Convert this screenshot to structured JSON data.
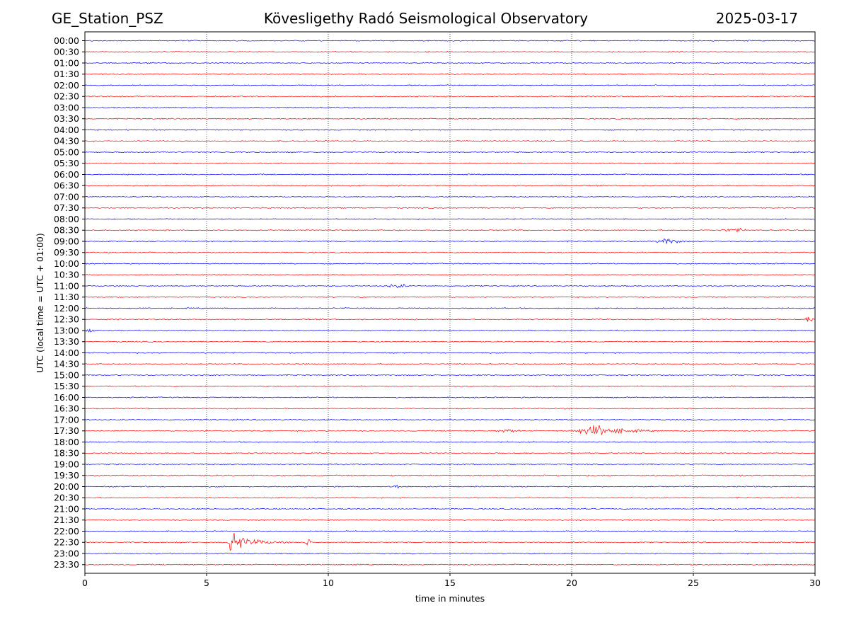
{
  "header": {
    "left": "GE_Station_PSZ",
    "center": "Kövesligethy Radó Seismological Observatory",
    "right": "2025-03-17"
  },
  "chart_data": {
    "type": "line",
    "title": "Kövesligethy Radó Seismological Observatory",
    "xlabel": "time in minutes",
    "ylabel": "UTC (local time = UTC + 01:00)",
    "xlim": [
      0,
      30
    ],
    "xticks": [
      0,
      5,
      10,
      15,
      20,
      25,
      30
    ],
    "grid": "vertical dotted",
    "colors": [
      "#0000ff",
      "#ff0000"
    ],
    "rows": [
      "00:00",
      "00:30",
      "01:00",
      "01:30",
      "02:00",
      "02:30",
      "03:00",
      "03:30",
      "04:00",
      "04:30",
      "05:00",
      "05:30",
      "06:00",
      "06:30",
      "07:00",
      "07:30",
      "08:00",
      "08:30",
      "09:00",
      "09:30",
      "10:00",
      "10:30",
      "11:00",
      "11:30",
      "12:00",
      "12:30",
      "13:00",
      "13:30",
      "14:00",
      "14:30",
      "15:00",
      "15:30",
      "16:00",
      "16:30",
      "17:00",
      "17:30",
      "18:00",
      "18:30",
      "19:00",
      "19:30",
      "20:00",
      "20:30",
      "21:00",
      "21:30",
      "22:00",
      "22:30",
      "23:00",
      "23:30"
    ],
    "events": [
      {
        "row": "08:30",
        "start": 25.8,
        "peak": 26.8,
        "end": 28.0,
        "amplitude": 2.5
      },
      {
        "row": "09:00",
        "start": 23.3,
        "peak": 23.9,
        "end": 25.5,
        "amplitude": 3.5
      },
      {
        "row": "11:00",
        "start": 12.0,
        "peak": 12.9,
        "end": 14.2,
        "amplitude": 2.5
      },
      {
        "row": "12:30",
        "start": 29.5,
        "peak": 29.85,
        "end": 30.0,
        "amplitude": 5
      },
      {
        "row": "13:00",
        "start": 0.0,
        "peak": 0.15,
        "end": 0.8,
        "amplitude": 5
      },
      {
        "row": "17:30",
        "start": 16.5,
        "peak": 17.5,
        "end": 18.3,
        "amplitude": 2.5
      },
      {
        "row": "17:30",
        "start": 19.8,
        "peak": 21.0,
        "end": 24.5,
        "amplitude": 6
      },
      {
        "row": "20:00",
        "start": 12.5,
        "peak": 12.8,
        "end": 13.3,
        "amplitude": 3
      },
      {
        "row": "22:30",
        "start": 5.8,
        "peak": 5.95,
        "end": 8.5,
        "amplitude": 11
      },
      {
        "row": "22:30",
        "start": 8.9,
        "peak": 9.2,
        "end": 9.6,
        "amplitude": 4
      }
    ]
  }
}
